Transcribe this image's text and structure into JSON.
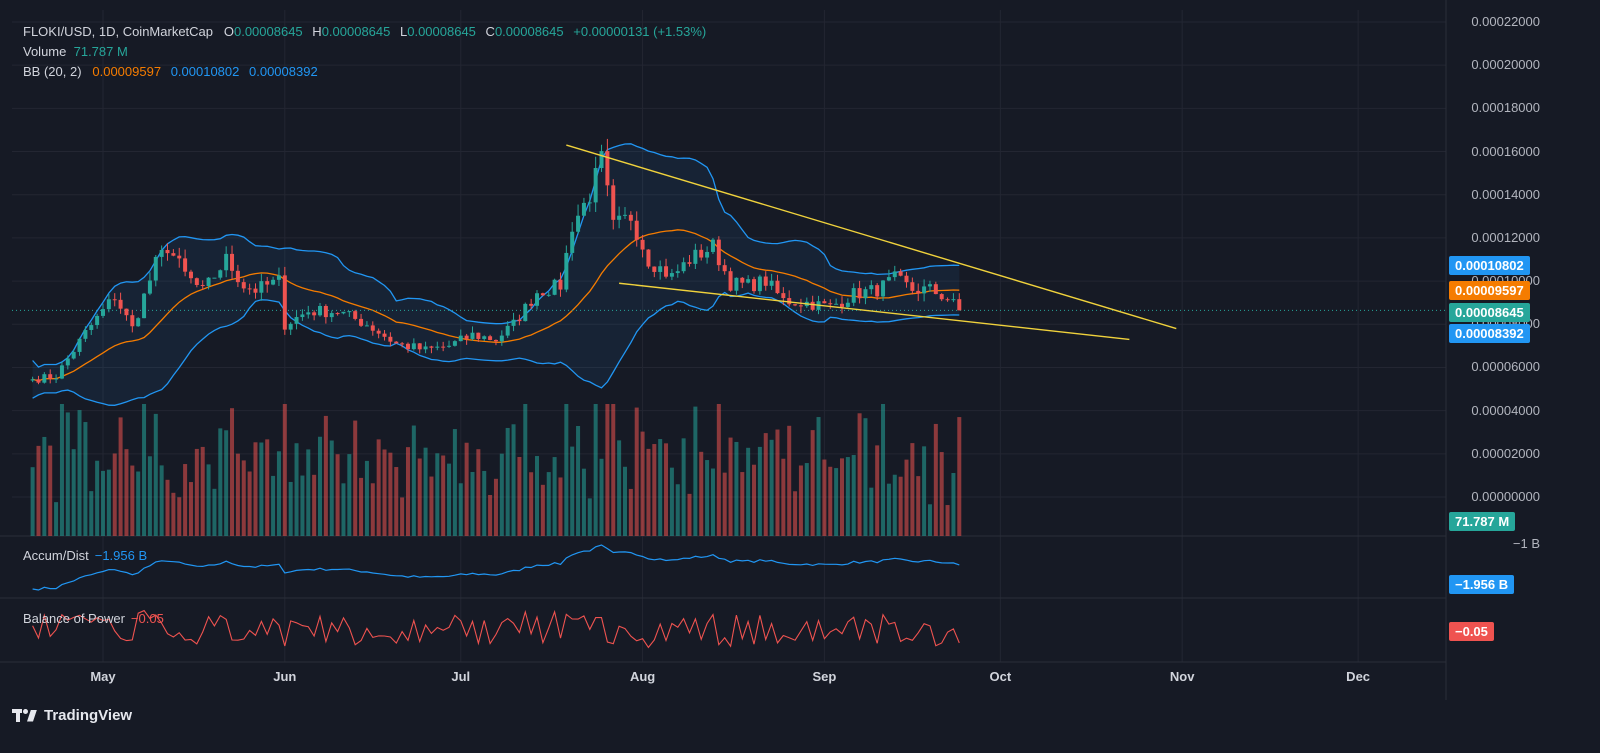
{
  "header": {
    "symbol": "FLOKI/USD, 1D, CoinMarketCap",
    "o_label": "O",
    "o_val": "0.00008645",
    "h_label": "H",
    "h_val": "0.00008645",
    "l_label": "L",
    "l_val": "0.00008645",
    "c_label": "C",
    "c_val": "0.00008645",
    "change": "+0.00000131 (+1.53%)",
    "volume_label": "Volume",
    "volume_val": "71.787 M",
    "bb_label": "BB (20, 2)",
    "bb_mid": "0.00009597",
    "bb_up": "0.00010802",
    "bb_low": "0.00008392"
  },
  "panes": {
    "ad_label": "Accum/Dist",
    "ad_val": "−1.956 B",
    "ad_axis": "−1 B",
    "ad_badge": "−1.956 B",
    "bop_label": "Balance of Power",
    "bop_val": "−0.05",
    "bop_badge": "−0.05"
  },
  "badges": {
    "upper": "0.00010802",
    "middle": "0.00009597",
    "last": "0.00008645",
    "lower": "0.00008392",
    "volume": "71.787 M"
  },
  "colors": {
    "up": "#26a69a",
    "down": "#ef5350",
    "bb_mid": "#f57c00",
    "bb_band": "#2196f3",
    "trend": "#f0d23c",
    "bg": "#161a25"
  },
  "brand": "TradingView",
  "chart_data": {
    "type": "candlestick",
    "title": "FLOKI/USD, 1D, CoinMarketCap",
    "x_ticks": [
      "May",
      "Jun",
      "Jul",
      "Aug",
      "Sep",
      "Oct",
      "Nov",
      "Dec"
    ],
    "y_ticks": [
      "0.00022000",
      "0.00020000",
      "0.00018000",
      "0.00016000",
      "0.00014000",
      "0.00012000",
      "0.00010000",
      "0.00008000",
      "0.00006000",
      "0.00004000",
      "0.00002000",
      "0.00000000"
    ],
    "ylim": [
      0.0,
      0.00022
    ],
    "close_anchors": [
      [
        "2023-04-19",
        5.45e-05
      ],
      [
        "2023-04-23",
        5.6e-05
      ],
      [
        "2023-04-28",
        7.6e-05
      ],
      [
        "2023-05-03",
        9.3e-05
      ],
      [
        "2023-05-06",
        7.8e-05
      ],
      [
        "2023-05-10",
        0.000108
      ],
      [
        "2023-05-12",
        0.000116
      ],
      [
        "2023-05-15",
        0.000103
      ],
      [
        "2023-05-18",
        9.5e-05
      ],
      [
        "2023-05-22",
        0.00011
      ],
      [
        "2023-05-25",
        9.8e-05
      ],
      [
        "2023-05-27",
        9.6e-05
      ],
      [
        "2023-05-31",
        0.0001
      ],
      [
        "2023-06-01",
        8e-05
      ],
      [
        "2023-06-05",
        8.6e-05
      ],
      [
        "2023-06-10",
        8.6e-05
      ],
      [
        "2023-06-15",
        8e-05
      ],
      [
        "2023-06-20",
        7.1e-05
      ],
      [
        "2023-06-25",
        6.8e-05
      ],
      [
        "2023-06-29",
        7e-05
      ],
      [
        "2023-07-03",
        7.5e-05
      ],
      [
        "2023-07-07",
        7.3e-05
      ],
      [
        "2023-07-10",
        8e-05
      ],
      [
        "2023-07-14",
        9.5e-05
      ],
      [
        "2023-07-18",
        9.8e-05
      ],
      [
        "2023-07-20",
        0.000126
      ],
      [
        "2023-07-23",
        0.00014
      ],
      [
        "2023-07-25",
        0.000156
      ],
      [
        "2023-07-27",
        0.000125
      ],
      [
        "2023-07-30",
        0.00013
      ],
      [
        "2023-08-02",
        0.00011
      ],
      [
        "2023-08-06",
        0.000102
      ],
      [
        "2023-08-09",
        0.00011
      ],
      [
        "2023-08-13",
        0.000116
      ],
      [
        "2023-08-16",
        9.9e-05
      ],
      [
        "2023-08-19",
        9.8e-05
      ],
      [
        "2023-08-22",
        0.0001
      ],
      [
        "2023-08-25",
        9.1e-05
      ],
      [
        "2023-08-29",
        9e-05
      ],
      [
        "2023-09-02",
        8.8e-05
      ],
      [
        "2023-09-06",
        9.4e-05
      ],
      [
        "2023-09-10",
        9.6e-05
      ],
      [
        "2023-09-13",
        0.000101
      ],
      [
        "2023-09-16",
        9.6e-05
      ],
      [
        "2023-09-19",
        9.6e-05
      ],
      [
        "2023-09-22",
        9.2e-05
      ],
      [
        "2023-09-24",
        8.64e-05
      ]
    ],
    "trendlines": [
      {
        "from": [
          "2023-07-19",
          0.000163
        ],
        "to": [
          "2023-10-31",
          7.8e-05
        ]
      },
      {
        "from": [
          "2023-07-28",
          9.9e-05
        ],
        "to": [
          "2023-10-23",
          7.3e-05
        ]
      }
    ],
    "bollinger": {
      "period": 20,
      "stddev": 2,
      "middle": 9.597e-05,
      "upper": 0.00010802,
      "lower": 8.392e-05
    },
    "last_close": 8.645e-05,
    "volume_last": "71.787 M",
    "accum_dist_last": "−1.956 B",
    "balance_of_power_last": "−0.05"
  }
}
